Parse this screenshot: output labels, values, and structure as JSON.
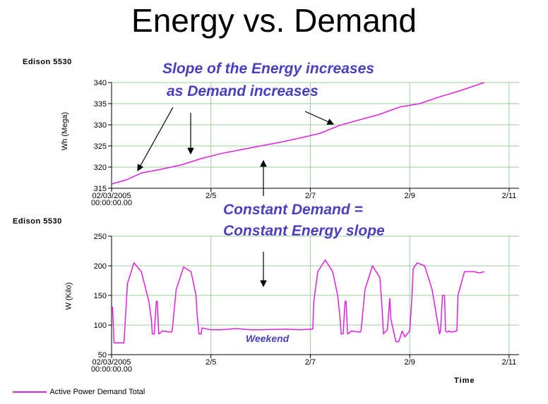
{
  "title": "Energy vs. Demand",
  "device_label": "Edison 5530",
  "annotations": {
    "energy_slope": "Slope of the Energy increases",
    "energy_slope_2": "as Demand increases",
    "constant": "Constant Demand =",
    "constant_2": "Constant Energy slope",
    "weekend": "Weekend"
  },
  "legend": "Active Power Demand Total",
  "colors": {
    "series": "#e020e0",
    "annotation": "#4a3fbf",
    "grid": "#9ccc9c"
  },
  "chart_data": [
    {
      "type": "line",
      "ylabel": "Wh (Mega)",
      "ylim": [
        315,
        340
      ],
      "yticks": [
        "340",
        "335",
        "330",
        "325",
        "320",
        "315"
      ],
      "xlim": [
        3,
        11.2
      ],
      "xticks": [
        {
          "x": 3,
          "label": "02/03/2005",
          "label2": "00:00:00.00"
        },
        {
          "x": 5,
          "label": "2/5"
        },
        {
          "x": 7,
          "label": "2/7"
        },
        {
          "x": 9,
          "label": "2/9"
        },
        {
          "x": 11,
          "label": "2/11"
        }
      ],
      "grid": true,
      "series": [
        {
          "x": [
            3.0,
            3.3,
            3.6,
            4.0,
            4.4,
            4.8,
            5.2,
            5.6,
            6.0,
            6.4,
            6.8,
            7.2,
            7.6,
            8.0,
            8.4,
            8.8,
            9.2,
            9.6,
            10.0,
            10.5
          ],
          "y": [
            316.0,
            317.0,
            318.6,
            319.5,
            320.5,
            322.0,
            323.2,
            324.1,
            325.0,
            325.9,
            326.9,
            328.0,
            329.9,
            331.2,
            332.5,
            334.2,
            335.0,
            336.6,
            338.0,
            340.0
          ]
        }
      ]
    },
    {
      "type": "line",
      "ylabel": "W (Kilo)",
      "xlabel": "Time",
      "ylim": [
        50,
        250
      ],
      "yticks": [
        "250",
        "200",
        "150",
        "100",
        "50"
      ],
      "xlim": [
        3,
        11.2
      ],
      "xticks": [
        {
          "x": 3,
          "label": "02/03/2005",
          "label2": "00:00:00.00"
        },
        {
          "x": 5,
          "label": "2/5"
        },
        {
          "x": 7,
          "label": "2/7"
        },
        {
          "x": 9,
          "label": "2/9"
        },
        {
          "x": 11,
          "label": "2/11"
        }
      ],
      "grid": true,
      "series": [
        {
          "x": [
            3.0,
            3.02,
            3.05,
            3.25,
            3.27,
            3.32,
            3.45,
            3.6,
            3.75,
            3.8,
            3.82,
            3.86,
            3.9,
            3.92,
            3.95,
            4.0,
            4.02,
            4.2,
            4.22,
            4.3,
            4.45,
            4.6,
            4.7,
            4.72,
            4.76,
            4.8,
            4.82,
            5.0,
            5.2,
            5.5,
            5.8,
            6.0,
            6.5,
            6.8,
            7.0,
            7.05,
            7.07,
            7.15,
            7.3,
            7.45,
            7.55,
            7.6,
            7.62,
            7.66,
            7.7,
            7.72,
            7.75,
            7.8,
            7.82,
            8.0,
            8.02,
            8.1,
            8.25,
            8.4,
            8.45,
            8.47,
            8.55,
            8.6,
            8.62,
            8.7,
            8.72,
            8.78,
            8.85,
            8.9,
            9.0,
            9.05,
            9.07,
            9.15,
            9.3,
            9.45,
            9.55,
            9.6,
            9.62,
            9.66,
            9.7,
            9.72,
            9.75,
            9.8,
            9.82,
            9.95,
            9.97,
            10.1,
            10.3,
            10.4,
            10.5
          ],
          "y": [
            130,
            130,
            70,
            70,
            100,
            170,
            205,
            190,
            140,
            110,
            85,
            85,
            140,
            140,
            85,
            88,
            90,
            88,
            90,
            160,
            198,
            190,
            150,
            120,
            85,
            85,
            95,
            92,
            92,
            94,
            92,
            92,
            93,
            92,
            93,
            93,
            140,
            190,
            210,
            190,
            150,
            110,
            85,
            85,
            140,
            140,
            85,
            88,
            90,
            88,
            90,
            160,
            200,
            180,
            120,
            85,
            92,
            145,
            110,
            80,
            72,
            72,
            90,
            80,
            90,
            155,
            195,
            205,
            200,
            160,
            110,
            85,
            90,
            150,
            150,
            90,
            88,
            90,
            88,
            90,
            150,
            190,
            190,
            188,
            190
          ]
        }
      ]
    }
  ]
}
